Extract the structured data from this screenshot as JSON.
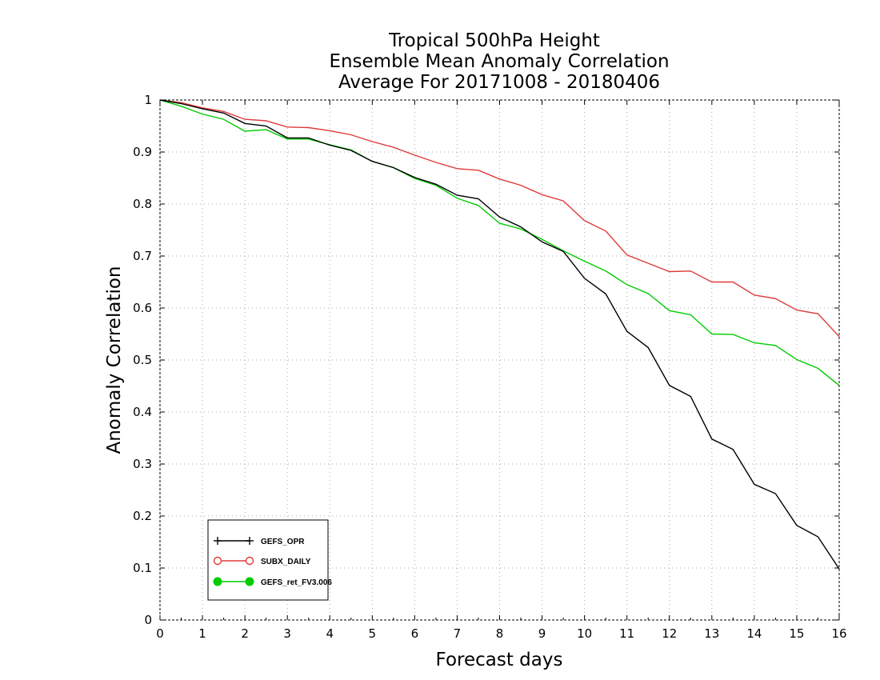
{
  "chart_data": {
    "type": "line",
    "title": [
      "Tropical 500hPa Height",
      "Ensemble Mean Anomaly Correlation",
      "Average For 20171008 - 20180406"
    ],
    "xlabel": "Forecast days",
    "ylabel": "Anomaly Correlation",
    "xlim": [
      0,
      16
    ],
    "ylim": [
      0,
      1
    ],
    "xticks": [
      "0",
      "1",
      "2",
      "3",
      "4",
      "5",
      "6",
      "7",
      "8",
      "9",
      "10",
      "11",
      "12",
      "13",
      "14",
      "15",
      "16"
    ],
    "yticks": [
      "0",
      "0.1",
      "0.2",
      "0.3",
      "0.4",
      "0.5",
      "0.6",
      "0.7",
      "0.8",
      "0.9",
      "1"
    ],
    "grid": true,
    "legend_position": "bottom-left",
    "x": [
      0,
      0.5,
      1,
      1.5,
      2,
      2.5,
      3,
      3.5,
      4,
      4.5,
      5,
      5.5,
      6,
      6.5,
      7,
      7.5,
      8,
      8.5,
      9,
      9.5,
      10,
      10.5,
      11,
      11.5,
      12,
      12.5,
      13,
      13.5,
      14,
      14.5,
      15,
      15.5,
      16
    ],
    "series": [
      {
        "name": "GEFS_OPR",
        "color": "#000000",
        "marker": "plus",
        "values": [
          1.0,
          0.993,
          0.983,
          0.975,
          0.955,
          0.95,
          0.927,
          0.927,
          0.913,
          0.903,
          0.882,
          0.87,
          0.851,
          0.838,
          0.817,
          0.81,
          0.775,
          0.756,
          0.727,
          0.709,
          0.657,
          0.627,
          0.555,
          0.524,
          0.451,
          0.43,
          0.348,
          0.328,
          0.261,
          0.243,
          0.182,
          0.16,
          0.098
        ]
      },
      {
        "name": "SUBX_DAILY",
        "color": "#e03a3a",
        "marker": "open-circle",
        "values": [
          1.0,
          0.995,
          0.985,
          0.978,
          0.963,
          0.96,
          0.948,
          0.947,
          0.941,
          0.933,
          0.92,
          0.909,
          0.894,
          0.88,
          0.868,
          0.865,
          0.848,
          0.836,
          0.818,
          0.806,
          0.768,
          0.748,
          0.702,
          0.686,
          0.67,
          0.671,
          0.65,
          0.65,
          0.625,
          0.618,
          0.596,
          0.589,
          0.545
        ]
      },
      {
        "name": "GEFS_ret_FV3.006",
        "color": "#00cc00",
        "marker": "filled-circle",
        "values": [
          1.0,
          0.988,
          0.973,
          0.963,
          0.94,
          0.943,
          0.925,
          0.925,
          0.914,
          0.904,
          0.882,
          0.87,
          0.849,
          0.836,
          0.811,
          0.797,
          0.763,
          0.752,
          0.732,
          0.71,
          0.69,
          0.671,
          0.645,
          0.628,
          0.595,
          0.587,
          0.55,
          0.549,
          0.533,
          0.528,
          0.501,
          0.484,
          0.451
        ]
      }
    ]
  }
}
